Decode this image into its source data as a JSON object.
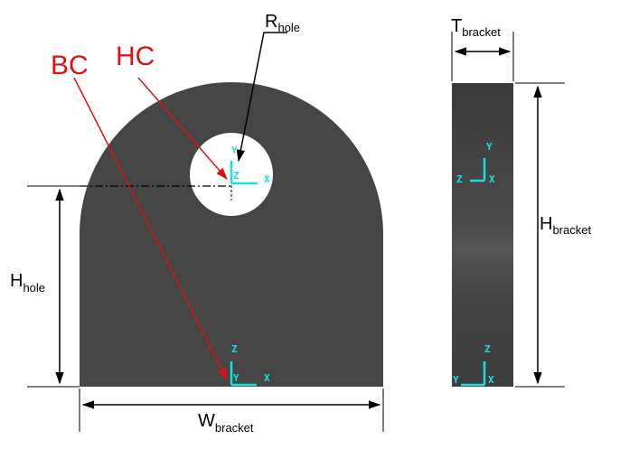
{
  "colors": {
    "body": "#454545",
    "triad": "#18e0e0",
    "annotation": "#e01010",
    "dimension": "#000000"
  },
  "labels": {
    "r_hole": {
      "main": "R",
      "sub": "hole"
    },
    "t_bracket": {
      "main": "T",
      "sub": "bracket"
    },
    "h_bracket": {
      "main": "H",
      "sub": "bracket"
    },
    "h_hole": {
      "main": "H",
      "sub": "hole"
    },
    "w_bracket": {
      "main": "W",
      "sub": "bracket"
    },
    "bc": "BC",
    "hc": "HC"
  },
  "triads": {
    "hole": {
      "y": "Y",
      "z": "Z",
      "x": "X"
    },
    "base": {
      "z": "Z",
      "y": "Y",
      "x": "X"
    },
    "side_top": {
      "y": "Y",
      "z": "Z",
      "x": "X"
    },
    "side_bottom": {
      "z": "Z",
      "y": "Y",
      "x": "X"
    }
  }
}
